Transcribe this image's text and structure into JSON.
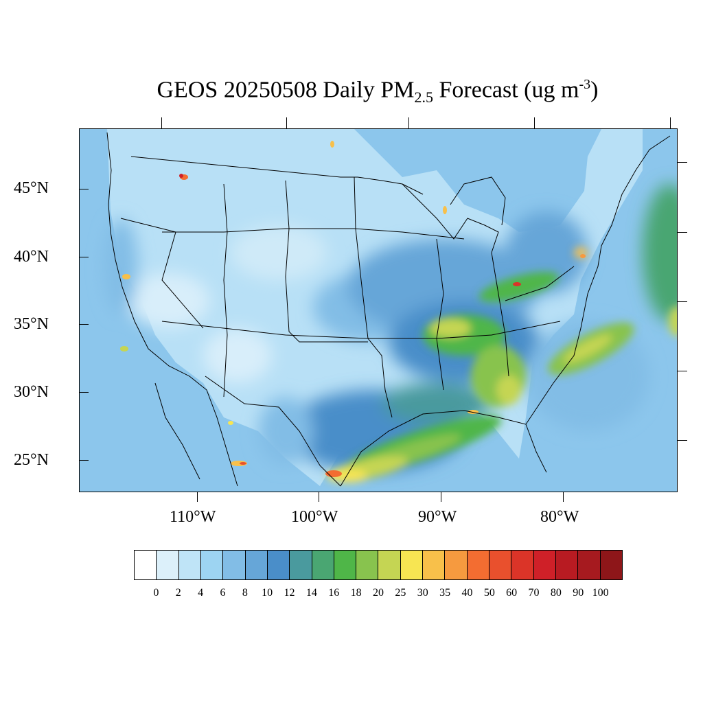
{
  "title": {
    "prefix": "GEOS 20250508 Daily PM",
    "subscript": "2.5",
    "middle": " Forecast (ug m",
    "superscript": "-3",
    "suffix": ")"
  },
  "map": {
    "lat_labels": [
      "45°N",
      "40°N",
      "35°N",
      "30°N",
      "25°N"
    ],
    "lon_labels": [
      "110°W",
      "100°W",
      "90°W",
      "80°W"
    ]
  },
  "colorbar": {
    "labels": [
      "0",
      "2",
      "4",
      "6",
      "8",
      "10",
      "12",
      "14",
      "16",
      "18",
      "20",
      "25",
      "30",
      "35",
      "40",
      "50",
      "60",
      "70",
      "80",
      "90",
      "100"
    ],
    "colors": [
      "#ffffff",
      "#dcf0fa",
      "#bfe4f7",
      "#9dd4f2",
      "#82bde6",
      "#66a6d8",
      "#4a8ec9",
      "#4a9a9e",
      "#4aa672",
      "#4fb648",
      "#88c34e",
      "#c5d553",
      "#f7e552",
      "#f8c04a",
      "#f69a3f",
      "#f36d31",
      "#e9502d",
      "#db3428",
      "#cf2028",
      "#b81b22",
      "#a61a1f",
      "#8e1619"
    ]
  }
}
